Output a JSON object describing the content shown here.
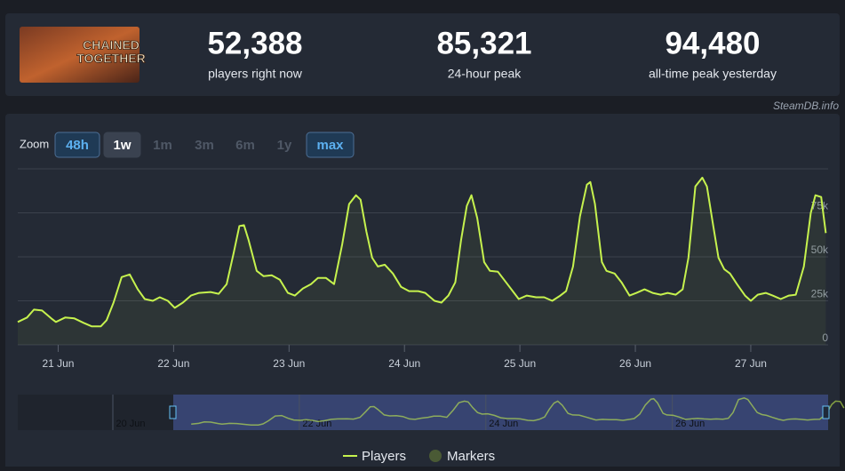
{
  "header": {
    "game_logo": [
      "CHAINED",
      "TOGETHER"
    ],
    "stats": [
      {
        "value": "52,388",
        "label": "players right now"
      },
      {
        "value": "85,321",
        "label": "24-hour peak"
      },
      {
        "value": "94,480",
        "label": "all-time peak yesterday"
      }
    ],
    "watermark": "SteamDB.info"
  },
  "zoom": {
    "label": "Zoom",
    "buttons": [
      "48h",
      "1w",
      "1m",
      "3m",
      "6m",
      "1y",
      "max"
    ]
  },
  "chart_data": {
    "type": "line",
    "x": [
      20.65,
      20.73,
      20.79,
      20.86,
      20.94,
      20.98,
      21.06,
      21.14,
      21.22,
      21.29,
      21.37,
      21.42,
      21.48,
      21.55,
      21.62,
      21.69,
      21.75,
      21.82,
      21.88,
      21.95,
      22.01,
      22.08,
      22.15,
      22.22,
      22.32,
      22.39,
      22.46,
      22.52,
      22.57,
      22.61,
      22.65,
      22.72,
      22.78,
      22.85,
      22.92,
      22.99,
      23.05,
      23.12,
      23.19,
      23.25,
      23.32,
      23.39,
      23.46,
      23.52,
      23.58,
      23.62,
      23.67,
      23.72,
      23.77,
      23.83,
      23.9,
      23.97,
      24.04,
      24.12,
      24.18,
      24.26,
      24.32,
      24.38,
      24.44,
      24.49,
      24.54,
      24.58,
      24.63,
      24.69,
      24.74,
      24.81,
      24.88,
      24.95,
      24.99,
      25.06,
      25.14,
      25.21,
      25.28,
      25.35,
      25.4,
      25.46,
      25.52,
      25.58,
      25.61,
      25.65,
      25.71,
      25.75,
      25.82,
      25.88,
      25.95,
      26.01,
      26.08,
      26.15,
      26.22,
      26.28,
      26.35,
      26.41,
      26.46,
      26.52,
      26.58,
      26.62,
      26.67,
      26.72,
      26.77,
      26.82,
      26.88,
      26.95,
      27.0,
      27.06,
      27.13,
      27.19,
      27.26,
      27.33,
      27.39,
      27.46,
      27.52,
      27.56,
      27.61,
      27.65
    ],
    "series": [
      {
        "name": "Players",
        "color": "#c6f24e",
        "values": [
          13000,
          15500,
          20000,
          19500,
          15000,
          13000,
          15500,
          15000,
          12500,
          10500,
          10500,
          14000,
          24000,
          38500,
          40000,
          31500,
          26000,
          25000,
          27000,
          25000,
          21000,
          24000,
          28000,
          29500,
          30000,
          29000,
          34500,
          52000,
          67500,
          68000,
          59500,
          42000,
          39000,
          39500,
          37000,
          29500,
          28000,
          32000,
          34500,
          38000,
          38000,
          34500,
          57000,
          80000,
          85000,
          82500,
          64500,
          49500,
          44500,
          45500,
          40500,
          33000,
          30500,
          30500,
          29500,
          25000,
          24000,
          28000,
          35500,
          59500,
          79000,
          85000,
          72000,
          47000,
          42000,
          41500,
          35500,
          29500,
          26000,
          28000,
          27000,
          27000,
          25000,
          28000,
          30500,
          44500,
          73000,
          91000,
          92500,
          80000,
          47000,
          42000,
          40500,
          35500,
          28000,
          29500,
          31500,
          29500,
          28500,
          29500,
          28500,
          31500,
          49500,
          90000,
          95000,
          90000,
          69500,
          49500,
          43000,
          40500,
          34500,
          28000,
          25000,
          28500,
          29500,
          28000,
          26000,
          28000,
          28500,
          44500,
          75000,
          85000,
          84000,
          63500
        ]
      }
    ],
    "marker_legend": "Markers",
    "xlim": [
      20.65,
      27.67
    ],
    "xticks": [
      {
        "value": 21,
        "label": "21 Jun"
      },
      {
        "value": 22,
        "label": "22 Jun"
      },
      {
        "value": 23,
        "label": "23 Jun"
      },
      {
        "value": 24,
        "label": "24 Jun"
      },
      {
        "value": 25,
        "label": "25 Jun"
      },
      {
        "value": 26,
        "label": "26 Jun"
      },
      {
        "value": 27,
        "label": "27 Jun"
      }
    ],
    "ylim": [
      0,
      100000
    ],
    "yticks": [
      0,
      {
        "value": 25000,
        "label": "25k"
      },
      {
        "value": 50000,
        "label": "50k"
      },
      {
        "value": 75000,
        "label": "75k"
      }
    ],
    "grid": true,
    "navigator": {
      "xlim": [
        18.79,
        27.48
      ],
      "xticks": [
        {
          "value": 20,
          "label": "20 Jun"
        },
        {
          "value": 22,
          "label": "22 Jun"
        },
        {
          "value": 24,
          "label": "24 Jun"
        },
        {
          "value": 26,
          "label": "26 Jun"
        }
      ]
    }
  }
}
